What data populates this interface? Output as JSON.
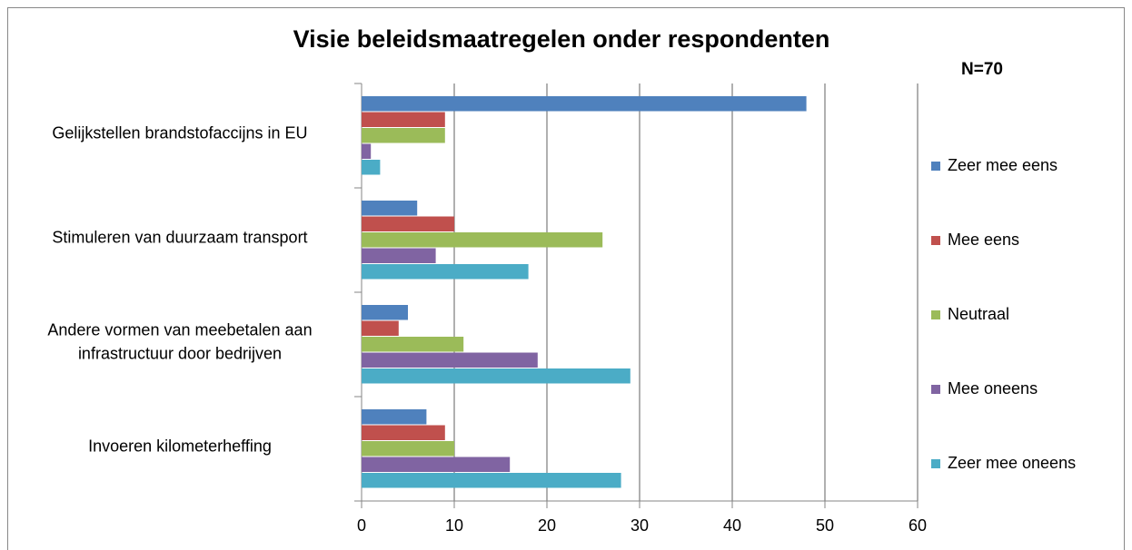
{
  "chart_data": {
    "type": "hbar",
    "title": "Visie beleidsmaatregelen onder respondenten",
    "annotation": "N=70",
    "categories": [
      "Gelijkstellen brandstofaccijns in EU",
      "Stimuleren van duurzaam transport",
      "Andere vormen van meebetalen aan infrastructuur door bedrijven",
      "Invoeren kilometerheffing"
    ],
    "series": [
      {
        "name": "Zeer mee eens",
        "color": "#4f81bd",
        "values": [
          48,
          6,
          5,
          7
        ]
      },
      {
        "name": "Mee eens",
        "color": "#c0504d",
        "values": [
          9,
          10,
          4,
          9
        ]
      },
      {
        "name": "Neutraal",
        "color": "#9bbb59",
        "values": [
          9,
          26,
          11,
          10
        ]
      },
      {
        "name": "Mee oneens",
        "color": "#8064a2",
        "values": [
          1,
          8,
          19,
          16
        ]
      },
      {
        "name": "Zeer mee oneens",
        "color": "#4bacc6",
        "values": [
          2,
          18,
          29,
          28
        ]
      }
    ],
    "xlim": [
      0,
      60
    ],
    "xticks": [
      0,
      10,
      20,
      30,
      40,
      50,
      60
    ],
    "grid": true,
    "legend": "right"
  }
}
